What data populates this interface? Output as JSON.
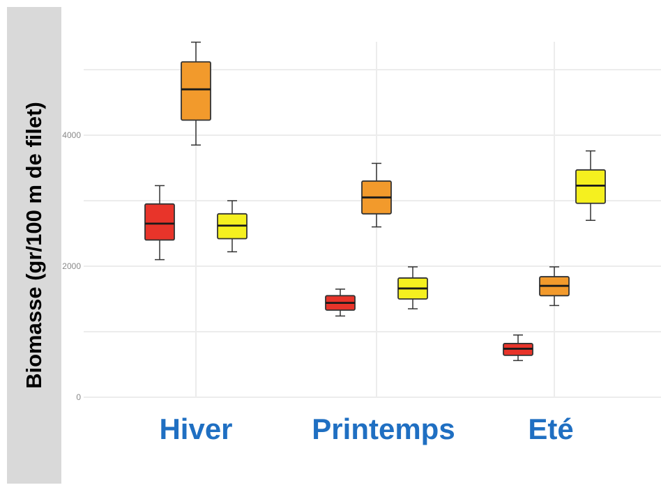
{
  "chart_data": {
    "type": "box",
    "ylabel": "Biomasse (gr/100 m de filet)",
    "xlabel": "",
    "categories": [
      "Hiver",
      "Printemps",
      "Eté"
    ],
    "y_tick_labels": [
      "0",
      "2000",
      "4000"
    ],
    "y_ticks": [
      0,
      2000,
      4000
    ],
    "ylim": [
      0,
      5500
    ],
    "grid": true,
    "colors": {
      "category_text": "#1f6fc2",
      "series": [
        "#e8342a",
        "#f29a2c",
        "#f5f01f"
      ],
      "outline": "#333333",
      "grid": "#ececec",
      "tick_text": "#888888"
    },
    "series": [
      {
        "boxes": [
          {
            "min": 2100,
            "q1": 2400,
            "median": 2650,
            "q3": 2950,
            "max": 3230
          },
          {
            "min": 1240,
            "q1": 1330,
            "median": 1440,
            "q3": 1550,
            "max": 1650
          },
          {
            "min": 560,
            "q1": 640,
            "median": 740,
            "q3": 820,
            "max": 950
          }
        ]
      },
      {
        "boxes": [
          {
            "min": 3850,
            "q1": 4230,
            "median": 4700,
            "q3": 5120,
            "max": 5420
          },
          {
            "min": 2600,
            "q1": 2800,
            "median": 3050,
            "q3": 3300,
            "max": 3570
          },
          {
            "min": 1400,
            "q1": 1550,
            "median": 1700,
            "q3": 1840,
            "max": 1990
          }
        ]
      },
      {
        "boxes": [
          {
            "min": 2220,
            "q1": 2420,
            "median": 2620,
            "q3": 2800,
            "max": 3000
          },
          {
            "min": 1350,
            "q1": 1500,
            "median": 1660,
            "q3": 1820,
            "max": 1990
          },
          {
            "min": 2700,
            "q1": 2960,
            "median": 3230,
            "q3": 3470,
            "max": 3760
          }
        ]
      }
    ]
  }
}
